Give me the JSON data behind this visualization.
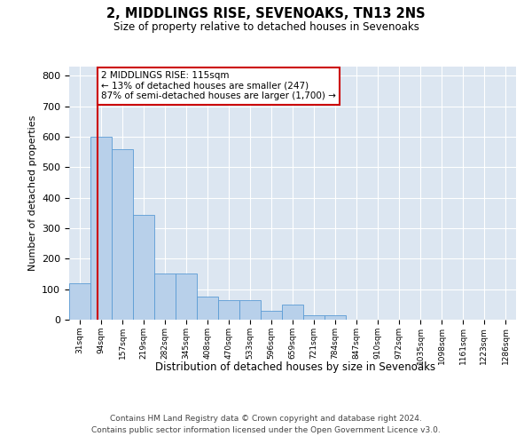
{
  "title": "2, MIDDLINGS RISE, SEVENOAKS, TN13 2NS",
  "subtitle": "Size of property relative to detached houses in Sevenoaks",
  "xlabel": "Distribution of detached houses by size in Sevenoaks",
  "ylabel": "Number of detached properties",
  "bar_color": "#b8d0ea",
  "bar_edge_color": "#5b9bd5",
  "bg_color": "#dce6f1",
  "grid_color": "#ffffff",
  "annotation_text": "2 MIDDLINGS RISE: 115sqm\n← 13% of detached houses are smaller (247)\n87% of semi-detached houses are larger (1,700) →",
  "property_line_x": 115,
  "categories": [
    "31sqm",
    "94sqm",
    "157sqm",
    "219sqm",
    "282sqm",
    "345sqm",
    "408sqm",
    "470sqm",
    "533sqm",
    "596sqm",
    "659sqm",
    "721sqm",
    "784sqm",
    "847sqm",
    "910sqm",
    "972sqm",
    "1035sqm",
    "1098sqm",
    "1161sqm",
    "1223sqm",
    "1286sqm"
  ],
  "bin_starts": [
    31,
    94,
    157,
    219,
    282,
    345,
    408,
    470,
    533,
    596,
    659,
    721,
    784,
    847,
    910,
    972,
    1035,
    1098,
    1161,
    1223,
    1286
  ],
  "values": [
    120,
    600,
    560,
    345,
    150,
    150,
    75,
    65,
    65,
    30,
    50,
    15,
    15,
    0,
    0,
    0,
    0,
    0,
    0,
    0,
    0
  ],
  "ylim": [
    0,
    830
  ],
  "yticks": [
    0,
    100,
    200,
    300,
    400,
    500,
    600,
    700,
    800
  ],
  "footer1": "Contains HM Land Registry data © Crown copyright and database right 2024.",
  "footer2": "Contains public sector information licensed under the Open Government Licence v3.0."
}
